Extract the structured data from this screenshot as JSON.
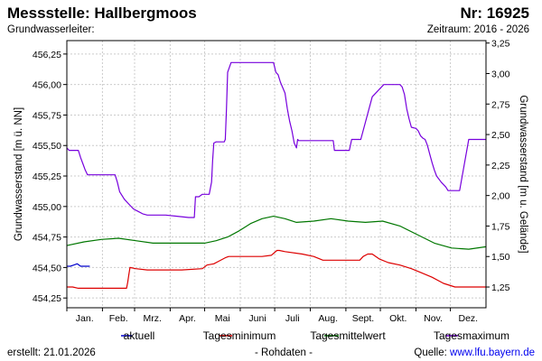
{
  "header": {
    "title": "Messstelle: Hallbergmoos",
    "number": "Nr: 16925",
    "aquifer": "Grundwasserleiter:",
    "period": "Zeitraum: 2016 - 2026"
  },
  "footer": {
    "created": "erstellt:  21.01.2026",
    "raw": "- Rohdaten -",
    "source_label": "Quelle: ",
    "source_link": "www.lfu.bayern.de"
  },
  "colors": {
    "aktuell": "#0000cc",
    "minimum": "#dd0000",
    "mittel": "#007700",
    "maximum": "#7700dd",
    "grid": "#cccccc",
    "axis": "#000000"
  },
  "chart_data": {
    "type": "line",
    "ylabel_left": "Grundwasserstand [m ü. NN]",
    "ylabel_right": "Grundwasserstand [m u. Gelände]",
    "ylim_left": [
      454.17,
      456.36
    ],
    "ylim_right": [
      3.27,
      1.08
    ],
    "yticks_left": [
      "454,25",
      "454,50",
      "454,75",
      "455,00",
      "455,25",
      "455,50",
      "455,75",
      "456,00",
      "456,25"
    ],
    "yticks_right": [
      "1,25",
      "1,50",
      "1,75",
      "2,00",
      "2,25",
      "2,50",
      "2,75",
      "3,00",
      "3,25"
    ],
    "xlim": [
      0,
      365
    ],
    "month_labels": [
      "Jan.",
      "Feb.",
      "Mrz.",
      "Apr.",
      "Mai",
      "Juni",
      "Juli",
      "Aug.",
      "Sept.",
      "Okt.",
      "Nov.",
      "Dez."
    ],
    "grid": true,
    "legend_position": "bottom",
    "series": [
      {
        "name": "aktuell",
        "x": [
          0,
          3,
          6,
          9,
          12,
          15,
          18,
          20
        ],
        "y": [
          454.51,
          454.51,
          454.52,
          454.53,
          454.51,
          454.51,
          454.51,
          454.51
        ]
      },
      {
        "name": "Tagesminimum",
        "x": [
          0,
          5,
          10,
          20,
          40,
          52,
          53,
          54,
          55,
          60,
          70,
          100,
          118,
          122,
          128,
          132,
          138,
          141,
          145,
          155,
          170,
          178,
          183,
          185,
          190,
          205,
          215,
          223,
          230,
          255,
          258,
          262,
          266,
          272,
          280,
          290,
          300,
          308,
          318,
          328,
          338,
          365
        ],
        "y": [
          454.34,
          454.34,
          454.33,
          454.33,
          454.33,
          454.33,
          454.38,
          454.44,
          454.5,
          454.49,
          454.48,
          454.48,
          454.49,
          454.52,
          454.53,
          454.55,
          454.58,
          454.59,
          454.59,
          454.59,
          454.59,
          454.6,
          454.64,
          454.64,
          454.63,
          454.61,
          454.59,
          454.56,
          454.56,
          454.56,
          454.59,
          454.61,
          454.61,
          454.57,
          454.54,
          454.52,
          454.49,
          454.46,
          454.42,
          454.37,
          454.34,
          454.34
        ]
      },
      {
        "name": "Tagesmittelwert",
        "x": [
          0,
          15,
          30,
          45,
          60,
          75,
          90,
          100,
          110,
          120,
          130,
          140,
          150,
          160,
          170,
          180,
          190,
          200,
          215,
          230,
          245,
          260,
          275,
          290,
          305,
          320,
          335,
          350,
          365
        ],
        "y": [
          454.68,
          454.71,
          454.73,
          454.74,
          454.72,
          454.7,
          454.7,
          454.7,
          454.7,
          454.7,
          454.72,
          454.75,
          454.8,
          454.86,
          454.9,
          454.92,
          454.9,
          454.87,
          454.88,
          454.9,
          454.88,
          454.87,
          454.88,
          454.84,
          454.77,
          454.7,
          454.66,
          454.65,
          454.67
        ]
      },
      {
        "name": "Tagesmaximum",
        "x": [
          0,
          2,
          4,
          8,
          10,
          12,
          14,
          16,
          18,
          28,
          36,
          40,
          42,
          44,
          46,
          50,
          54,
          58,
          62,
          66,
          70,
          74,
          78,
          86,
          96,
          106,
          108,
          111,
          112,
          115,
          118,
          121,
          124,
          126,
          127,
          128,
          130,
          134,
          137,
          138,
          139,
          140,
          143,
          146,
          152,
          162,
          172,
          176,
          180,
          182,
          184,
          186,
          190,
          192,
          194,
          196,
          198,
          200,
          201,
          202,
          206,
          216,
          226,
          232,
          233,
          240,
          246,
          248,
          250,
          252,
          256,
          266,
          276,
          284,
          288,
          290,
          292,
          294,
          296,
          298,
          300,
          304,
          306,
          308,
          310,
          312,
          314,
          316,
          318,
          320,
          322,
          326,
          330,
          332,
          336,
          342,
          350,
          362,
          365
        ],
        "y": [
          455.48,
          455.46,
          455.46,
          455.46,
          455.46,
          455.4,
          455.35,
          455.3,
          455.26,
          455.26,
          455.26,
          455.26,
          455.26,
          455.2,
          455.12,
          455.06,
          455.02,
          454.98,
          454.96,
          454.94,
          454.93,
          454.93,
          454.93,
          454.93,
          454.92,
          454.91,
          454.91,
          454.91,
          455.08,
          455.08,
          455.1,
          455.1,
          455.1,
          455.2,
          455.38,
          455.52,
          455.53,
          455.53,
          455.53,
          455.55,
          455.8,
          456.1,
          456.18,
          456.18,
          456.18,
          456.18,
          456.18,
          456.18,
          456.18,
          456.1,
          456.08,
          456.02,
          455.93,
          455.8,
          455.7,
          455.62,
          455.52,
          455.48,
          455.55,
          455.54,
          455.54,
          455.54,
          455.54,
          455.54,
          455.46,
          455.46,
          455.46,
          455.55,
          455.55,
          455.55,
          455.55,
          455.9,
          456.0,
          456.0,
          456.0,
          456.0,
          455.98,
          455.92,
          455.8,
          455.72,
          455.65,
          455.64,
          455.62,
          455.58,
          455.56,
          455.55,
          455.5,
          455.43,
          455.36,
          455.3,
          455.25,
          455.2,
          455.16,
          455.13,
          455.13,
          455.13,
          455.55,
          455.55,
          455.55
        ]
      }
    ]
  }
}
